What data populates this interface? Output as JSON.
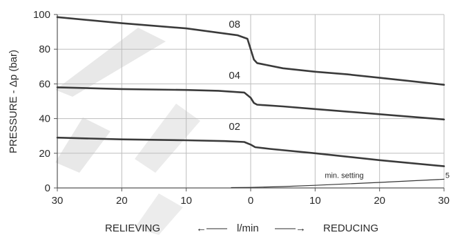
{
  "chart_data": {
    "type": "line",
    "title": "",
    "ylabel": "PRESSURE - Δp (bar)",
    "x_caption": {
      "left": "RELIEVING",
      "left_arrow": "←——",
      "center": "l/min",
      "right_arrow": "——→",
      "right": "REDUCING"
    },
    "x_axis": {
      "ticks": [
        -30,
        -20,
        -10,
        0,
        10,
        20,
        30
      ],
      "tick_labels": [
        "30",
        "20",
        "10",
        "0",
        "10",
        "20",
        "30"
      ],
      "xlim": [
        -30,
        30
      ]
    },
    "y_axis": {
      "ticks": [
        0,
        20,
        40,
        60,
        80,
        100
      ],
      "tick_labels": [
        "0",
        "20",
        "40",
        "60",
        "80",
        "100"
      ],
      "ylim": [
        0,
        100
      ]
    },
    "grid": true,
    "series": [
      {
        "name": "08",
        "label_at": [
          -2.5,
          92.5
        ],
        "points": [
          [
            -30,
            98.5
          ],
          [
            -20,
            95
          ],
          [
            -10,
            92
          ],
          [
            -2,
            88
          ],
          [
            -0.5,
            86
          ],
          [
            0,
            80
          ],
          [
            0.5,
            74
          ],
          [
            1,
            72
          ],
          [
            5,
            69
          ],
          [
            10,
            67
          ],
          [
            15,
            65.5
          ],
          [
            20,
            63.5
          ],
          [
            25,
            61.5
          ],
          [
            30,
            59.5
          ]
        ]
      },
      {
        "name": "04",
        "label_at": [
          -2.5,
          63
        ],
        "points": [
          [
            -30,
            58
          ],
          [
            -20,
            57
          ],
          [
            -10,
            56.5
          ],
          [
            -5,
            56
          ],
          [
            -1,
            55
          ],
          [
            0,
            52
          ],
          [
            0.5,
            49
          ],
          [
            1,
            48
          ],
          [
            5,
            47
          ],
          [
            10,
            45.5
          ],
          [
            20,
            42.5
          ],
          [
            30,
            39.5
          ]
        ]
      },
      {
        "name": "02",
        "label_at": [
          -2.5,
          33.5
        ],
        "points": [
          [
            -30,
            29
          ],
          [
            -20,
            28
          ],
          [
            -10,
            27.5
          ],
          [
            -4,
            27
          ],
          [
            -1,
            26.5
          ],
          [
            0,
            25
          ],
          [
            0.7,
            23.5
          ],
          [
            3,
            22.5
          ],
          [
            10,
            20
          ],
          [
            20,
            16
          ],
          [
            30,
            12.5
          ]
        ]
      },
      {
        "name": "5",
        "label_at": [
          30.2,
          5.8
        ],
        "points": [
          [
            -3,
            0.2
          ],
          [
            0,
            0.3
          ],
          [
            5,
            0.8
          ],
          [
            10,
            1.5
          ],
          [
            20,
            3.2
          ],
          [
            30,
            5
          ]
        ]
      }
    ],
    "annotations": [
      {
        "text": "min. setting",
        "at": [
          11.5,
          5.8
        ]
      }
    ]
  }
}
